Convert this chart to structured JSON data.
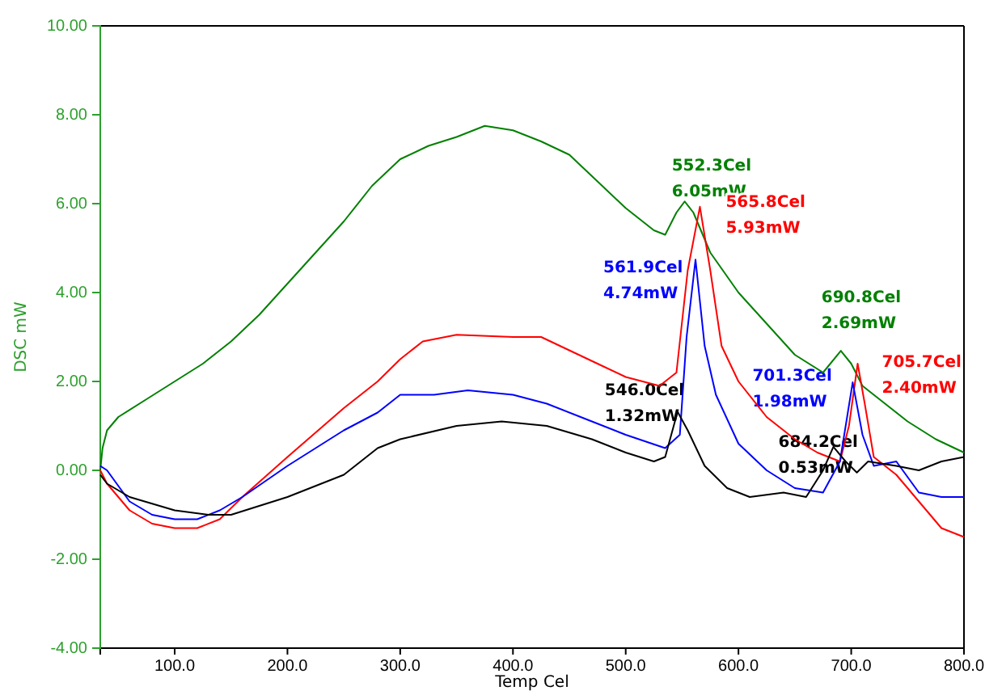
{
  "chart_data": {
    "type": "line",
    "xlabel": "Temp Cel",
    "ylabel": "DSC mW",
    "xlim": [
      34,
      800
    ],
    "ylim": [
      -4,
      10
    ],
    "xticks": [
      {
        "value": 100,
        "label": "100.0"
      },
      {
        "value": 200,
        "label": "200.0"
      },
      {
        "value": 300,
        "label": "300.0"
      },
      {
        "value": 400,
        "label": "400.0"
      },
      {
        "value": 500,
        "label": "500.0"
      },
      {
        "value": 600,
        "label": "600.0"
      },
      {
        "value": 700,
        "label": "700.0"
      },
      {
        "value": 800,
        "label": "800.0"
      }
    ],
    "yticks": [
      {
        "value": -4,
        "label": "-4.00"
      },
      {
        "value": -2,
        "label": "-2.00"
      },
      {
        "value": 0,
        "label": "0.00"
      },
      {
        "value": 2,
        "label": "2.00"
      },
      {
        "value": 4,
        "label": "4.00"
      },
      {
        "value": 6,
        "label": "6.00"
      },
      {
        "value": 8,
        "label": "8.00"
      },
      {
        "value": 10,
        "label": "10.00"
      }
    ],
    "grid": false,
    "line_style": "solid",
    "series": [
      {
        "color": "#008000",
        "x": [
          34,
          36,
          40,
          50,
          75,
          100,
          125,
          150,
          175,
          200,
          225,
          250,
          275,
          300,
          325,
          350,
          375,
          400,
          425,
          450,
          475,
          500,
          525,
          535,
          545,
          552.3,
          560,
          575,
          600,
          625,
          650,
          675,
          690.8,
          700,
          710,
          725,
          750,
          775,
          800
        ],
        "values": [
          0.0,
          0.5,
          0.9,
          1.2,
          1.6,
          2.0,
          2.4,
          2.9,
          3.5,
          4.2,
          4.9,
          5.6,
          6.4,
          7.0,
          7.3,
          7.5,
          7.75,
          7.65,
          7.4,
          7.1,
          6.5,
          5.9,
          5.4,
          5.3,
          5.8,
          6.05,
          5.8,
          4.9,
          4.0,
          3.3,
          2.6,
          2.2,
          2.69,
          2.4,
          1.9,
          1.6,
          1.1,
          0.7,
          0.4
        ]
      },
      {
        "color": "#ff0000",
        "x": [
          34,
          40,
          60,
          80,
          100,
          120,
          140,
          160,
          200,
          250,
          280,
          300,
          320,
          350,
          400,
          425,
          450,
          475,
          500,
          530,
          545,
          555,
          565.8,
          575,
          585,
          600,
          625,
          650,
          670,
          690,
          698,
          705.7,
          712,
          720,
          740,
          760,
          780,
          800
        ],
        "values": [
          0.0,
          -0.3,
          -0.9,
          -1.2,
          -1.3,
          -1.3,
          -1.1,
          -0.6,
          0.3,
          1.4,
          2.0,
          2.5,
          2.9,
          3.05,
          3.0,
          3.0,
          2.7,
          2.4,
          2.1,
          1.9,
          2.2,
          4.5,
          5.93,
          4.5,
          2.8,
          2.0,
          1.2,
          0.7,
          0.4,
          0.2,
          1.0,
          2.4,
          1.5,
          0.3,
          -0.1,
          -0.7,
          -1.3,
          -1.5
        ]
      },
      {
        "color": "#0000ff",
        "x": [
          34,
          40,
          60,
          80,
          100,
          120,
          140,
          160,
          200,
          250,
          280,
          300,
          330,
          360,
          400,
          430,
          460,
          500,
          535,
          548,
          554,
          561.9,
          570,
          580,
          600,
          625,
          650,
          675,
          690,
          701.3,
          710,
          720,
          740,
          760,
          780,
          800
        ],
        "values": [
          0.1,
          0.0,
          -0.7,
          -1.0,
          -1.1,
          -1.1,
          -0.9,
          -0.6,
          0.1,
          0.9,
          1.3,
          1.7,
          1.7,
          1.8,
          1.7,
          1.5,
          1.2,
          0.8,
          0.5,
          0.8,
          3.0,
          4.74,
          2.8,
          1.7,
          0.6,
          0.0,
          -0.4,
          -0.5,
          0.2,
          1.98,
          0.8,
          0.1,
          0.2,
          -0.5,
          -0.6,
          -0.6
        ]
      },
      {
        "color": "#000000",
        "x": [
          34,
          40,
          60,
          100,
          130,
          150,
          200,
          250,
          280,
          300,
          350,
          390,
          430,
          470,
          500,
          525,
          535,
          546,
          555,
          570,
          590,
          610,
          640,
          660,
          675,
          684.2,
          695,
          705,
          715,
          740,
          760,
          780,
          800
        ],
        "values": [
          -0.1,
          -0.3,
          -0.6,
          -0.9,
          -1.0,
          -1.0,
          -0.6,
          -0.1,
          0.5,
          0.7,
          1.0,
          1.1,
          1.0,
          0.7,
          0.4,
          0.2,
          0.3,
          1.32,
          0.9,
          0.1,
          -0.4,
          -0.6,
          -0.5,
          -0.6,
          0.0,
          0.53,
          0.2,
          -0.05,
          0.2,
          0.1,
          0.0,
          0.2,
          0.3
        ]
      }
    ],
    "annotations": [
      {
        "text": "552.3Cel\n6.05mW",
        "x": 552.3,
        "y": 6.05
      },
      {
        "text": "565.8Cel\n5.93mW",
        "x": 565.8,
        "y": 5.93
      },
      {
        "text": "561.9Cel\n4.74mW",
        "x": 561.9,
        "y": 4.74
      },
      {
        "text": "546.0Cel\n1.32mW",
        "x": 546.0,
        "y": 1.32
      },
      {
        "text": "690.8Cel\n2.69mW",
        "x": 690.8,
        "y": 2.69
      },
      {
        "text": "705.7Cel\n2.40mW",
        "x": 705.7,
        "y": 2.4
      },
      {
        "text": "701.3Cel\n1.98mW",
        "x": 701.3,
        "y": 1.98
      },
      {
        "text": "684.2Cel\n0.53mW",
        "x": 684.2,
        "y": 0.53
      }
    ]
  }
}
